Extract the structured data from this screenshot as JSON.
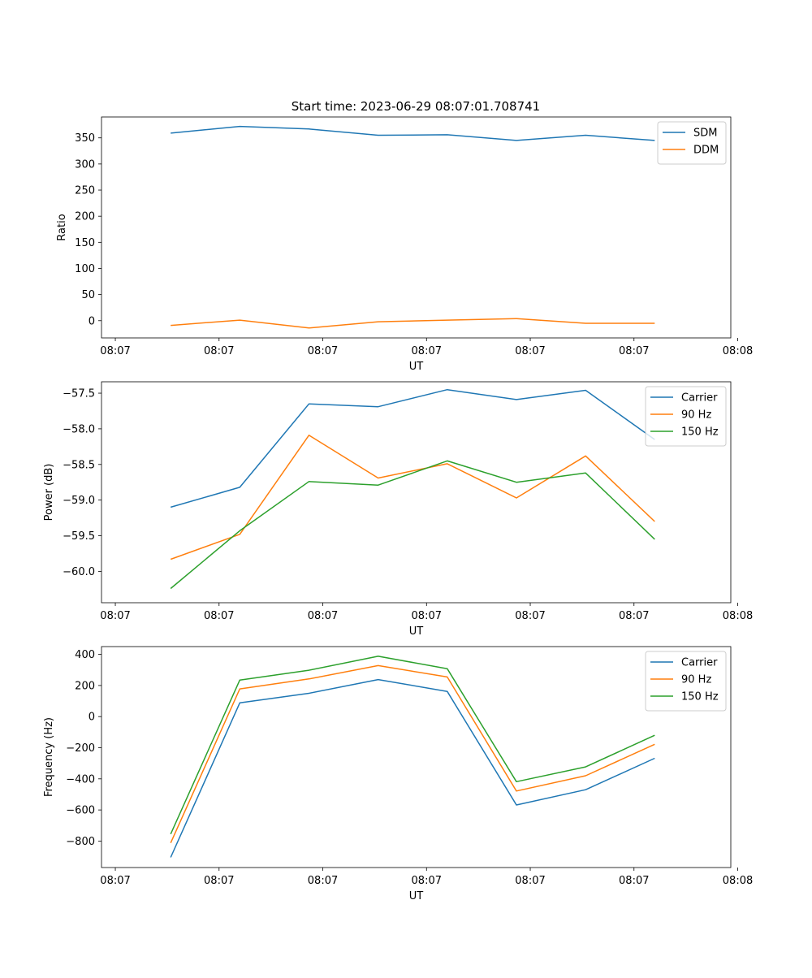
{
  "figure": {
    "title": "Start time: 2023-06-29 08:07:01.708741"
  },
  "colors": {
    "blue": "#1f77b4",
    "orange": "#ff7f0e",
    "green": "#2ca02c"
  },
  "chart_data": [
    {
      "type": "line",
      "title": "Start time: 2023-06-29 08:07:01.708741",
      "xlabel": "UT",
      "ylabel": "Ratio",
      "x": [
        1,
        2,
        3,
        4,
        5,
        6,
        7,
        8
      ],
      "xlim": [
        0,
        9.1
      ],
      "x_tick_positions": [
        0.2,
        1.7,
        3.2,
        4.7,
        6.2,
        7.7,
        9.2
      ],
      "x_tick_labels": [
        "08:07",
        "08:07",
        "08:07",
        "08:07",
        "08:07",
        "08:07",
        "08:08"
      ],
      "ylim": [
        -33,
        390
      ],
      "y_ticks": [
        0,
        50,
        100,
        150,
        200,
        250,
        300,
        350
      ],
      "y_tick_labels": [
        "0",
        "50",
        "100",
        "150",
        "200",
        "250",
        "300",
        "350"
      ],
      "legend": "top-right",
      "grid": false,
      "series": [
        {
          "name": "SDM",
          "color": "#1f77b4",
          "values": [
            359,
            372,
            367,
            355,
            356,
            345,
            355,
            345
          ]
        },
        {
          "name": "DDM",
          "color": "#ff7f0e",
          "values": [
            -9,
            1,
            -14,
            -2,
            1,
            4,
            -5,
            -5
          ]
        }
      ]
    },
    {
      "type": "line",
      "title": "",
      "xlabel": "UT",
      "ylabel": "Power (dB)",
      "x": [
        1,
        2,
        3,
        4,
        5,
        6,
        7,
        8
      ],
      "xlim": [
        0,
        9.1
      ],
      "x_tick_positions": [
        0.2,
        1.7,
        3.2,
        4.7,
        6.2,
        7.7,
        9.2
      ],
      "x_tick_labels": [
        "08:07",
        "08:07",
        "08:07",
        "08:07",
        "08:07",
        "08:07",
        "08:08"
      ],
      "ylim": [
        -60.44,
        -57.34
      ],
      "y_ticks": [
        -60.0,
        -59.5,
        -59.0,
        -58.5,
        -58.0,
        -57.5
      ],
      "y_tick_labels": [
        "−60.0",
        "−59.5",
        "−59.0",
        "−58.5",
        "−58.0",
        "−57.5"
      ],
      "legend": "top-right",
      "grid": false,
      "series": [
        {
          "name": "Carrier",
          "color": "#1f77b4",
          "values": [
            -59.1,
            -58.82,
            -57.65,
            -57.69,
            -57.45,
            -57.59,
            -57.46,
            -58.15
          ]
        },
        {
          "name": "90 Hz",
          "color": "#ff7f0e",
          "values": [
            -59.83,
            -59.48,
            -58.09,
            -58.69,
            -58.49,
            -58.97,
            -58.38,
            -59.3
          ]
        },
        {
          "name": "150 Hz",
          "color": "#2ca02c",
          "values": [
            -60.24,
            -59.43,
            -58.74,
            -58.79,
            -58.45,
            -58.75,
            -58.62,
            -59.55
          ]
        }
      ]
    },
    {
      "type": "line",
      "title": "",
      "xlabel": "UT",
      "ylabel": "Frequency (Hz)",
      "x": [
        1,
        2,
        3,
        4,
        5,
        6,
        7,
        8
      ],
      "xlim": [
        0,
        9.1
      ],
      "x_tick_positions": [
        0.2,
        1.7,
        3.2,
        4.7,
        6.2,
        7.7,
        9.2
      ],
      "x_tick_labels": [
        "08:07",
        "08:07",
        "08:07",
        "08:07",
        "08:07",
        "08:07",
        "08:08"
      ],
      "ylim": [
        -970,
        450
      ],
      "y_ticks": [
        -800,
        -600,
        -400,
        -200,
        0,
        200,
        400
      ],
      "y_tick_labels": [
        "−800",
        "−600",
        "−400",
        "−200",
        "0",
        "200",
        "400"
      ],
      "legend": "top-right",
      "grid": false,
      "series": [
        {
          "name": "Carrier",
          "color": "#1f77b4",
          "values": [
            -905,
            88,
            150,
            238,
            162,
            -568,
            -470,
            -268
          ]
        },
        {
          "name": "90 Hz",
          "color": "#ff7f0e",
          "values": [
            -812,
            178,
            242,
            328,
            255,
            -478,
            -380,
            -178
          ]
        },
        {
          "name": "150 Hz",
          "color": "#2ca02c",
          "values": [
            -755,
            235,
            298,
            388,
            308,
            -418,
            -323,
            -120
          ]
        }
      ]
    }
  ]
}
